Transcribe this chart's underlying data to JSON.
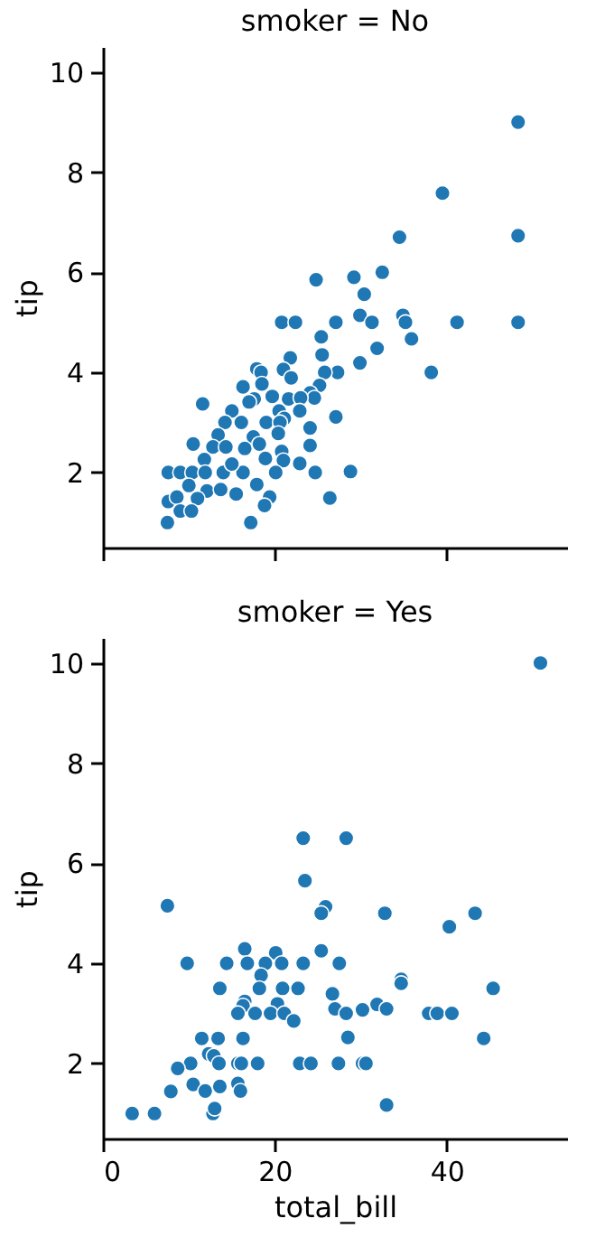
{
  "chart_data": [
    {
      "type": "scatter",
      "title": "smoker = No",
      "ylabel": "tip",
      "marker": "circle",
      "tick_labels": "y",
      "xlim": [
        0,
        54
      ],
      "xticks": [
        0,
        20,
        40
      ],
      "ylim": [
        0.5,
        10.5
      ],
      "yticks": [
        2,
        4,
        6,
        8,
        10
      ],
      "series": [
        {
          "color": "#1f77b4",
          "x": [
            48.3,
            39.5,
            48.3,
            34.5,
            24.8,
            29.2,
            32.5,
            30.4,
            20.8,
            22.4,
            27.1,
            29.9,
            31.3,
            34.9,
            35.2,
            35.9,
            41.2,
            48.3,
            31.9,
            29.9,
            38.2,
            25.4,
            25.5,
            21.8,
            21.0,
            21.9,
            27.3,
            25.8,
            25.2,
            24.1,
            27.1,
            24.6,
            17.9,
            18.4,
            16.3,
            18.5,
            19.7,
            17.6,
            17.0,
            21.6,
            23.0,
            22.9,
            20.5,
            21.1,
            24.1,
            15.0,
            14.2,
            16.1,
            19.0,
            20.6,
            11.6,
            13.4,
            12.8,
            14.3,
            17.5,
            16.5,
            18.2,
            20.4,
            20.8,
            21.0,
            24.1,
            22.9,
            24.7,
            28.8,
            26.4,
            10.5,
            11.8,
            7.6,
            9.0,
            10.4,
            11.9,
            14.0,
            16.3,
            20.1,
            18.9,
            15.0,
            10.0,
            12.1,
            13.7,
            15.5,
            17.9,
            19.4,
            18.8,
            7.6,
            8.6,
            9.0,
            11.0,
            10.3,
            7.5,
            17.2
          ],
          "values": [
            9.0,
            7.58,
            6.73,
            6.7,
            5.85,
            5.9,
            6.0,
            5.56,
            5.0,
            5.0,
            5.0,
            5.14,
            5.0,
            5.14,
            5.0,
            4.67,
            5.0,
            5.0,
            4.48,
            4.19,
            4.0,
            4.71,
            4.35,
            4.29,
            4.06,
            3.89,
            4.0,
            4.0,
            3.74,
            3.59,
            3.11,
            3.49,
            4.07,
            4.0,
            3.71,
            3.77,
            3.52,
            3.47,
            3.41,
            3.47,
            3.49,
            3.23,
            3.23,
            3.08,
            2.89,
            3.23,
            3.0,
            3.0,
            3.0,
            3.0,
            3.37,
            2.75,
            2.51,
            2.51,
            2.71,
            2.48,
            2.57,
            2.78,
            2.42,
            2.24,
            2.54,
            2.18,
            2.0,
            2.02,
            1.49,
            2.57,
            2.26,
            2.0,
            2.0,
            2.0,
            2.0,
            2.0,
            2.0,
            2.0,
            2.28,
            2.17,
            1.74,
            1.63,
            1.66,
            1.57,
            1.76,
            1.51,
            1.34,
            1.42,
            1.51,
            1.23,
            1.48,
            1.23,
            1.0,
            1.0
          ]
        }
      ]
    },
    {
      "type": "scatter",
      "title": "smoker = Yes",
      "xlabel": "total_bill",
      "ylabel": "tip",
      "marker": "circle",
      "xlim": [
        0,
        54
      ],
      "xticks": [
        0,
        20,
        40
      ],
      "ylim": [
        0.5,
        10.5
      ],
      "yticks": [
        2,
        4,
        6,
        8,
        10
      ],
      "series": [
        {
          "color": "#1f77b4",
          "x": [
            50.9,
            23.3,
            28.3,
            23.5,
            7.5,
            25.9,
            25.4,
            32.8,
            43.3,
            40.3,
            16.5,
            20.1,
            25.4,
            9.8,
            14.4,
            16.8,
            18.9,
            20.8,
            23.3,
            27.5,
            18.4,
            13.6,
            18.2,
            20.9,
            22.7,
            26.7,
            34.7,
            34.7,
            45.4,
            16.5,
            16.3,
            20.3,
            31.9,
            33.0,
            27.0,
            15.7,
            17.7,
            19.5,
            21.1,
            22.2,
            28.3,
            30.2,
            37.9,
            38.9,
            40.6,
            11.5,
            13.4,
            16.3,
            28.5,
            44.3,
            12.3,
            12.9,
            10.2,
            13.5,
            15.7,
            16.1,
            18.0,
            8.7,
            10.5,
            11.9,
            13.6,
            15.7,
            16.0,
            7.9,
            22.9,
            24.2,
            27.4,
            30.2,
            30.6,
            33.0,
            3.4,
            6.0,
            12.8,
            13.0
          ],
          "values": [
            10.0,
            6.5,
            6.5,
            5.65,
            5.15,
            5.13,
            5.0,
            5.0,
            5.0,
            4.73,
            4.29,
            4.21,
            4.25,
            4.0,
            4.0,
            4.0,
            4.0,
            4.0,
            4.0,
            4.0,
            3.76,
            3.5,
            3.5,
            3.5,
            3.5,
            3.39,
            3.68,
            3.6,
            3.5,
            3.24,
            3.15,
            3.19,
            3.18,
            3.09,
            3.09,
            3.0,
            3.0,
            3.0,
            3.0,
            2.85,
            3.0,
            3.07,
            3.0,
            3.0,
            3.0,
            2.5,
            2.5,
            2.5,
            2.52,
            2.5,
            2.19,
            2.15,
            2.0,
            2.0,
            2.0,
            2.0,
            2.0,
            1.9,
            1.58,
            1.45,
            1.54,
            1.6,
            1.45,
            1.44,
            2.0,
            2.0,
            2.0,
            2.0,
            2.0,
            1.17,
            1.0,
            1.0,
            1.0,
            1.1
          ]
        }
      ]
    }
  ]
}
